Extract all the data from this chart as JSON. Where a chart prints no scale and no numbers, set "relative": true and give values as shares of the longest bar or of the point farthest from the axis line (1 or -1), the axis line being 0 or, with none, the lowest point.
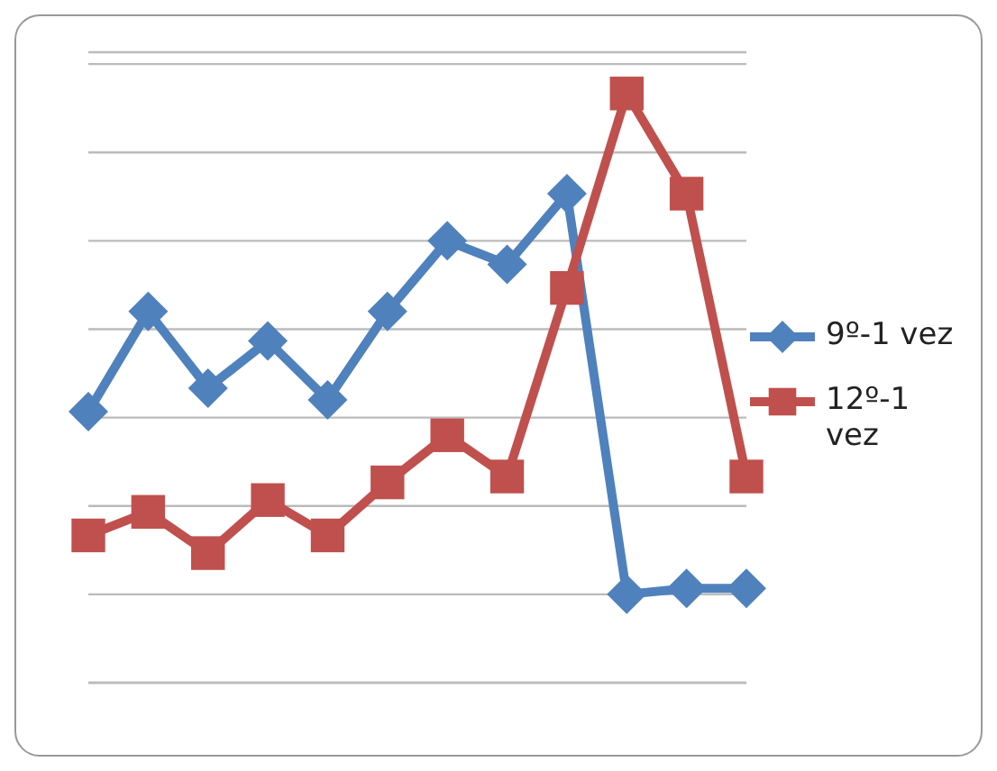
{
  "chart_data": {
    "type": "line",
    "relative": true,
    "categories": [
      null,
      null,
      null,
      null,
      null,
      null,
      null,
      null,
      null,
      null,
      null,
      null
    ],
    "series": [
      {
        "name": "9º-1 vez",
        "color": "#4f81bd",
        "marker": "diamond",
        "values": [
          0.46,
          0.63,
          0.5,
          0.58,
          0.48,
          0.63,
          0.75,
          0.71,
          0.83,
          0.15,
          0.16,
          0.16
        ]
      },
      {
        "name": "12º-1 vez",
        "color": "#c0504d",
        "marker": "square",
        "values": [
          0.25,
          0.29,
          0.22,
          0.31,
          0.25,
          0.34,
          0.42,
          0.35,
          0.67,
          1,
          0.83,
          0.35
        ]
      }
    ],
    "grid": "y",
    "legend": "right"
  }
}
